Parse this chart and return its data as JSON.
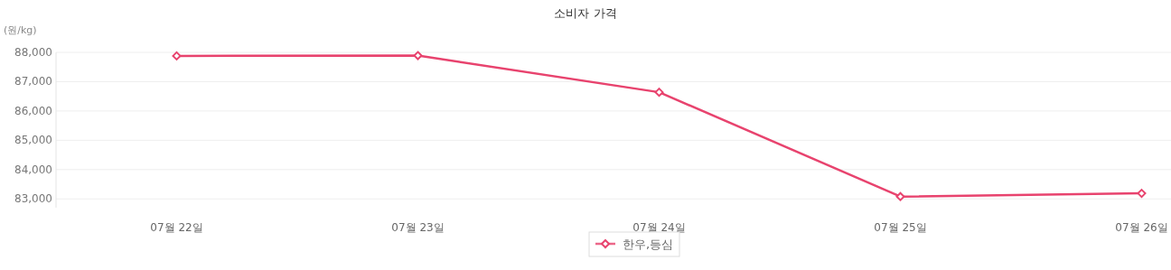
{
  "chart_data": {
    "type": "line",
    "title": "소비자 가격",
    "ylabel": "(원/kg)",
    "categories": [
      "07월 22일",
      "07월 23일",
      "07월 24일",
      "07월 25일",
      "07월 26일"
    ],
    "series": [
      {
        "name": "한우,등심",
        "color": "#e8436e",
        "values": [
          87880,
          87890,
          86640,
          83080,
          83190
        ]
      }
    ],
    "ylim": [
      82700,
      88000
    ],
    "yticks": [
      {
        "value": 83000,
        "label": "83,000"
      },
      {
        "value": 84000,
        "label": "84,000"
      },
      {
        "value": 85000,
        "label": "85,000"
      },
      {
        "value": 86000,
        "label": "86,000"
      },
      {
        "value": 87000,
        "label": "87,000"
      },
      {
        "value": 88000,
        "label": "88,000"
      }
    ],
    "grid": "y",
    "legend": "bottom",
    "marker": "diamond",
    "line_style": "solid"
  }
}
